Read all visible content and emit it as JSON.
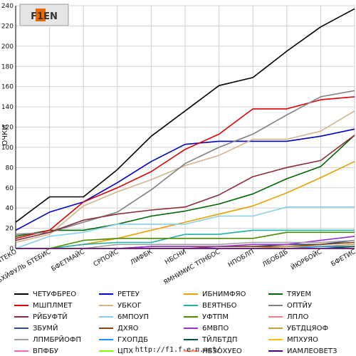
{
  "logo_text": "F1EN",
  "footer_url": "http://f1.f-e-n.net/",
  "chart_data": {
    "type": "line",
    "ylabel": "ОЧКИ",
    "ylim": [
      0,
      240
    ],
    "yticks": [
      0,
      20,
      40,
      60,
      80,
      100,
      120,
      140,
      160,
      180,
      200,
      220,
      240
    ],
    "grid": true,
    "legend_position": "bottom",
    "categories": [
      "ВВИТЕКО",
      "УБХЙФУЛЬ БТЕБИС",
      "БФЕТМАЙС",
      "СРПОЙС",
      "ЛИФБК",
      "НБСНИ",
      "ЯМНИМИС ТПНБОС",
      "НПОБЛП",
      "ЛБОБДБ",
      "ЙЮРБОЙС",
      "БФЕТИС"
    ],
    "series": [
      {
        "name": "ЧЕТУФБРЕО",
        "color": "#000000",
        "values": [
          26,
          51,
          51,
          78,
          111,
          136,
          161,
          169,
          195,
          219,
          237
        ]
      },
      {
        "name": "РЕТЕУ",
        "color": "#0000cc",
        "values": [
          18,
          36,
          46,
          65,
          86,
          103,
          106,
          106,
          106,
          111,
          118
        ]
      },
      {
        "name": "ИБНИМФЯО",
        "color": "#e8a000",
        "values": [
          0,
          0,
          4,
          10,
          18,
          26,
          34,
          42,
          55,
          70,
          86
        ]
      },
      {
        "name": "ТЯУЕМ",
        "color": "#006400",
        "values": [
          12,
          18,
          18,
          24,
          32,
          37,
          44,
          54,
          69,
          81,
          112
        ]
      },
      {
        "name": "МШПЛМЕТ",
        "color": "#e00000",
        "values": [
          10,
          18,
          46,
          60,
          76,
          98,
          113,
          138,
          138,
          147,
          150
        ]
      },
      {
        "name": "УБКОГ",
        "color": "#d2b48c",
        "values": [
          6,
          14,
          42,
          56,
          68,
          82,
          92,
          108,
          108,
          116,
          136
        ]
      },
      {
        "name": "ВЕЯТНБО",
        "color": "#20b2aa",
        "values": [
          0,
          0,
          4,
          6,
          6,
          14,
          14,
          18,
          18,
          18,
          18
        ]
      },
      {
        "name": "ОПТЙУ",
        "color": "#808080",
        "values": [
          14,
          16,
          26,
          36,
          58,
          84,
          100,
          113,
          132,
          150,
          156
        ]
      },
      {
        "name": "РЙБУФТЙ",
        "color": "#8b2c3c",
        "values": [
          8,
          16,
          28,
          34,
          38,
          41,
          53,
          71,
          80,
          87,
          112
        ]
      },
      {
        "name": "6МПОУП",
        "color": "#87ceeb",
        "values": [
          0,
          12,
          16,
          24,
          24,
          24,
          32,
          32,
          41,
          41,
          41
        ]
      },
      {
        "name": "УФТПМ",
        "color": "#4d8c00",
        "values": [
          0,
          0,
          8,
          10,
          10,
          10,
          10,
          10,
          16,
          16,
          16
        ]
      },
      {
        "name": "ЛПЛО",
        "color": "#f08080",
        "values": [
          0,
          0,
          0,
          0,
          0,
          0,
          0,
          0,
          2,
          4,
          6
        ]
      },
      {
        "name": "ЗБУМЙ",
        "color": "#2f4f8f",
        "values": [
          0,
          0,
          0,
          0,
          2,
          2,
          2,
          2,
          4,
          4,
          8
        ]
      },
      {
        "name": "ДХЯО",
        "color": "#8b4513",
        "values": [
          0,
          0,
          0,
          0,
          0,
          0,
          2,
          2,
          2,
          4,
          6
        ]
      },
      {
        "name": "6МВПО",
        "color": "#9932cc",
        "values": [
          0,
          0,
          0,
          0,
          2,
          2,
          2,
          4,
          4,
          8,
          12
        ]
      },
      {
        "name": "УБТДЦЯОФ",
        "color": "#c8a040",
        "values": [
          0,
          0,
          0,
          0,
          0,
          0,
          0,
          0,
          2,
          2,
          4
        ]
      },
      {
        "name": "ЛПМБРЙОФП",
        "color": "#a0a0a0",
        "values": [
          0,
          0,
          0,
          4,
          4,
          4,
          4,
          6,
          6,
          6,
          8
        ]
      },
      {
        "name": "ГХОПДБ",
        "color": "#1e90ff",
        "values": [
          0,
          0,
          0,
          0,
          0,
          0,
          0,
          0,
          0,
          2,
          2
        ]
      },
      {
        "name": "ТЙЛБТДП",
        "color": "#004d4d",
        "values": [
          0,
          0,
          0,
          0,
          0,
          0,
          0,
          0,
          0,
          0,
          2
        ]
      },
      {
        "name": "МПХУЯО",
        "color": "#ffc000",
        "values": [
          0,
          0,
          0,
          0,
          0,
          0,
          0,
          0,
          0,
          0,
          0
        ]
      },
      {
        "name": "ВПФБУ",
        "color": "#ff69b4",
        "values": [
          0,
          0,
          0,
          0,
          0,
          0,
          0,
          0,
          0,
          0,
          0
        ]
      },
      {
        "name": "ЦПХ",
        "color": "#7fff00",
        "values": [
          0,
          0,
          0,
          0,
          0,
          0,
          0,
          0,
          0,
          0,
          0
        ]
      },
      {
        "name": "НБЗОХУЕО",
        "color": "#ff8c69",
        "values": [
          0,
          0,
          0,
          0,
          0,
          0,
          0,
          0,
          0,
          0,
          0
        ]
      },
      {
        "name": "ИАМЛЕОВЕТЗ",
        "color": "#4b0082",
        "values": [
          0,
          0,
          0,
          0,
          0,
          0,
          0,
          0,
          0,
          0,
          0
        ]
      }
    ]
  }
}
